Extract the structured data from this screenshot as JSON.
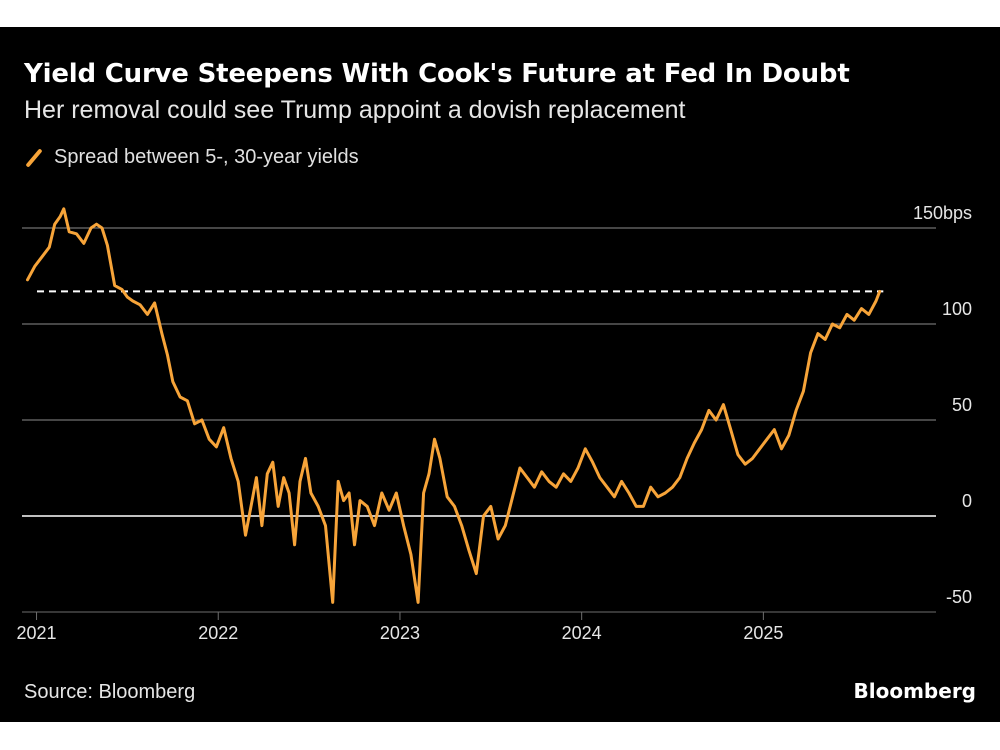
{
  "header": {
    "title": "Yield Curve Steepens With Cook's Future at Fed In Doubt",
    "subtitle": "Her removal could see Trump appoint a dovish replacement"
  },
  "legend": {
    "label": "Spread between 5-, 30-year yields",
    "color": "#f7a439"
  },
  "footer": {
    "source": "Source: Bloomberg",
    "brand": "Bloomberg"
  },
  "chart_data": {
    "type": "line",
    "xlabel": "",
    "ylabel": "",
    "xlim": [
      2020.92,
      2025.95
    ],
    "ylim": [
      -50,
      150
    ],
    "x_ticks": [
      2021,
      2022,
      2023,
      2024,
      2025
    ],
    "x_tick_labels": [
      "2021",
      "2022",
      "2023",
      "2024",
      "2025"
    ],
    "y_ticks": [
      150,
      100,
      50,
      0,
      -50
    ],
    "y_tick_labels": [
      "150bps",
      "100",
      "50",
      "0",
      "-50"
    ],
    "y_gridlines": [
      150,
      100,
      50,
      0
    ],
    "grid": true,
    "axis_position": "right",
    "reference_line": {
      "value": 117,
      "style": "dashed",
      "color": "#ffffff"
    },
    "series": [
      {
        "color": "#f7a439",
        "x": [
          2020.95,
          2020.99,
          2021.03,
          2021.07,
          2021.1,
          2021.13,
          2021.15,
          2021.18,
          2021.22,
          2021.26,
          2021.3,
          2021.33,
          2021.36,
          2021.39,
          2021.43,
          2021.47,
          2021.5,
          2021.53,
          2021.57,
          2021.61,
          2021.65,
          2021.69,
          2021.72,
          2021.75,
          2021.79,
          2021.83,
          2021.87,
          2021.91,
          2021.95,
          2021.99,
          2022.03,
          2022.07,
          2022.11,
          2022.15,
          2022.18,
          2022.21,
          2022.24,
          2022.27,
          2022.3,
          2022.33,
          2022.36,
          2022.39,
          2022.42,
          2022.45,
          2022.48,
          2022.51,
          2022.55,
          2022.59,
          2022.63,
          2022.66,
          2022.69,
          2022.72,
          2022.75,
          2022.78,
          2022.82,
          2022.86,
          2022.9,
          2022.94,
          2022.98,
          2023.02,
          2023.06,
          2023.1,
          2023.13,
          2023.16,
          2023.19,
          2023.22,
          2023.26,
          2023.3,
          2023.34,
          2023.38,
          2023.42,
          2023.46,
          2023.5,
          2023.54,
          2023.58,
          2023.62,
          2023.66,
          2023.7,
          2023.74,
          2023.78,
          2023.82,
          2023.86,
          2023.9,
          2023.94,
          2023.98,
          2024.02,
          2024.06,
          2024.1,
          2024.14,
          2024.18,
          2024.22,
          2024.26,
          2024.3,
          2024.34,
          2024.38,
          2024.42,
          2024.46,
          2024.5,
          2024.54,
          2024.58,
          2024.62,
          2024.66,
          2024.7,
          2024.74,
          2024.78,
          2024.82,
          2024.86,
          2024.9,
          2024.94,
          2024.98,
          2025.02,
          2025.06,
          2025.1,
          2025.14,
          2025.18,
          2025.22,
          2025.26,
          2025.3,
          2025.34,
          2025.38,
          2025.42,
          2025.46,
          2025.5,
          2025.54,
          2025.58,
          2025.62,
          2025.64
        ],
        "values": [
          123,
          130,
          135,
          140,
          152,
          156,
          160,
          148,
          147,
          142,
          150,
          152,
          150,
          141,
          120,
          118,
          114,
          112,
          110,
          105,
          111,
          95,
          84,
          70,
          62,
          60,
          48,
          50,
          40,
          36,
          46,
          30,
          18,
          -10,
          5,
          20,
          -5,
          22,
          28,
          5,
          20,
          12,
          -15,
          18,
          30,
          12,
          5,
          -5,
          -45,
          18,
          8,
          12,
          -15,
          8,
          5,
          -5,
          12,
          3,
          12,
          -5,
          -20,
          -45,
          12,
          22,
          40,
          30,
          10,
          5,
          -5,
          -18,
          -30,
          0,
          5,
          -12,
          -5,
          10,
          25,
          20,
          15,
          23,
          18,
          15,
          22,
          18,
          25,
          35,
          28,
          20,
          15,
          10,
          18,
          12,
          5,
          5,
          15,
          10,
          12,
          15,
          20,
          30,
          38,
          45,
          55,
          50,
          58,
          45,
          32,
          27,
          30,
          35,
          40,
          45,
          35,
          42,
          55,
          65,
          85,
          95,
          92,
          100,
          98,
          105,
          102,
          108,
          105,
          112,
          117
        ]
      }
    ]
  }
}
